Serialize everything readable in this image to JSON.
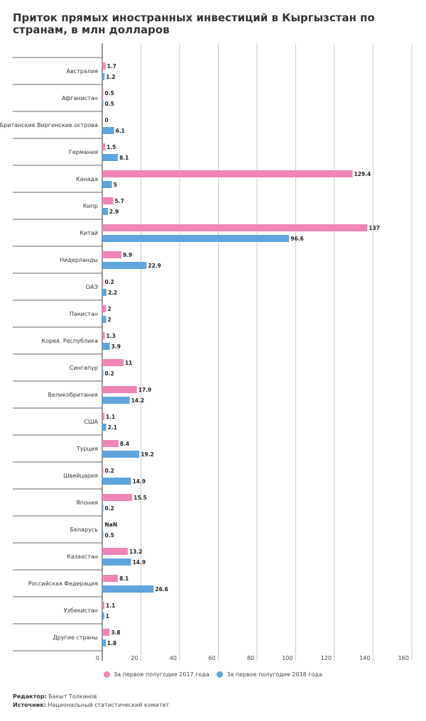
{
  "title": "Приток прямых иностранных инвестиций в Кыргызстан по странам, в млн долларов",
  "colors": {
    "series2017": "#ee85b5",
    "series2018": "#5fa4dc"
  },
  "chart_data": {
    "type": "bar",
    "orientation": "horizontal",
    "title": "Приток прямых иностранных инвестиций в Кыргызстан по странам, в млн долларов",
    "categories": [
      "Австралия",
      "Афганистан",
      "Британские Виргинские острова",
      "Германия",
      "Канада",
      "Кипр",
      "Китай",
      "Нидерланды",
      "ОАЭ",
      "Пакистан",
      "Корея. Республика",
      "Сингапур",
      "Великобритания",
      "США",
      "Турция",
      "Швейцария",
      "Япония",
      "Беларусь",
      "Казахстан",
      "Российская Федерация",
      "Узбекистан",
      "Другие страны"
    ],
    "series": [
      {
        "name": "За первое полугодие 2017 года",
        "values": [
          1.7,
          0.5,
          0,
          1.5,
          129.4,
          5.7,
          137,
          9.9,
          0.2,
          2,
          1.3,
          11,
          17.9,
          1.1,
          8.4,
          0.2,
          15.5,
          "NaN",
          13.2,
          8.1,
          1.1,
          3.8
        ]
      },
      {
        "name": "За первое полугодие 2018 года",
        "values": [
          1.2,
          0.5,
          6.1,
          8.1,
          5,
          2.9,
          96.6,
          22.9,
          2.2,
          2,
          3.9,
          0.2,
          14.2,
          2.1,
          19.2,
          14.9,
          0.2,
          0.5,
          14.9,
          26.6,
          1,
          1.8
        ]
      }
    ],
    "xlim": [
      0,
      160
    ],
    "xticks": [
      0,
      20,
      40,
      60,
      80,
      100,
      120,
      140,
      160
    ],
    "grid": true,
    "legend": "bottom"
  },
  "footer": {
    "editor_label": "Редактор:",
    "editor": "Бакыт Толканов",
    "source_label": "Источник:",
    "source": "Национальный статистический комитет"
  }
}
